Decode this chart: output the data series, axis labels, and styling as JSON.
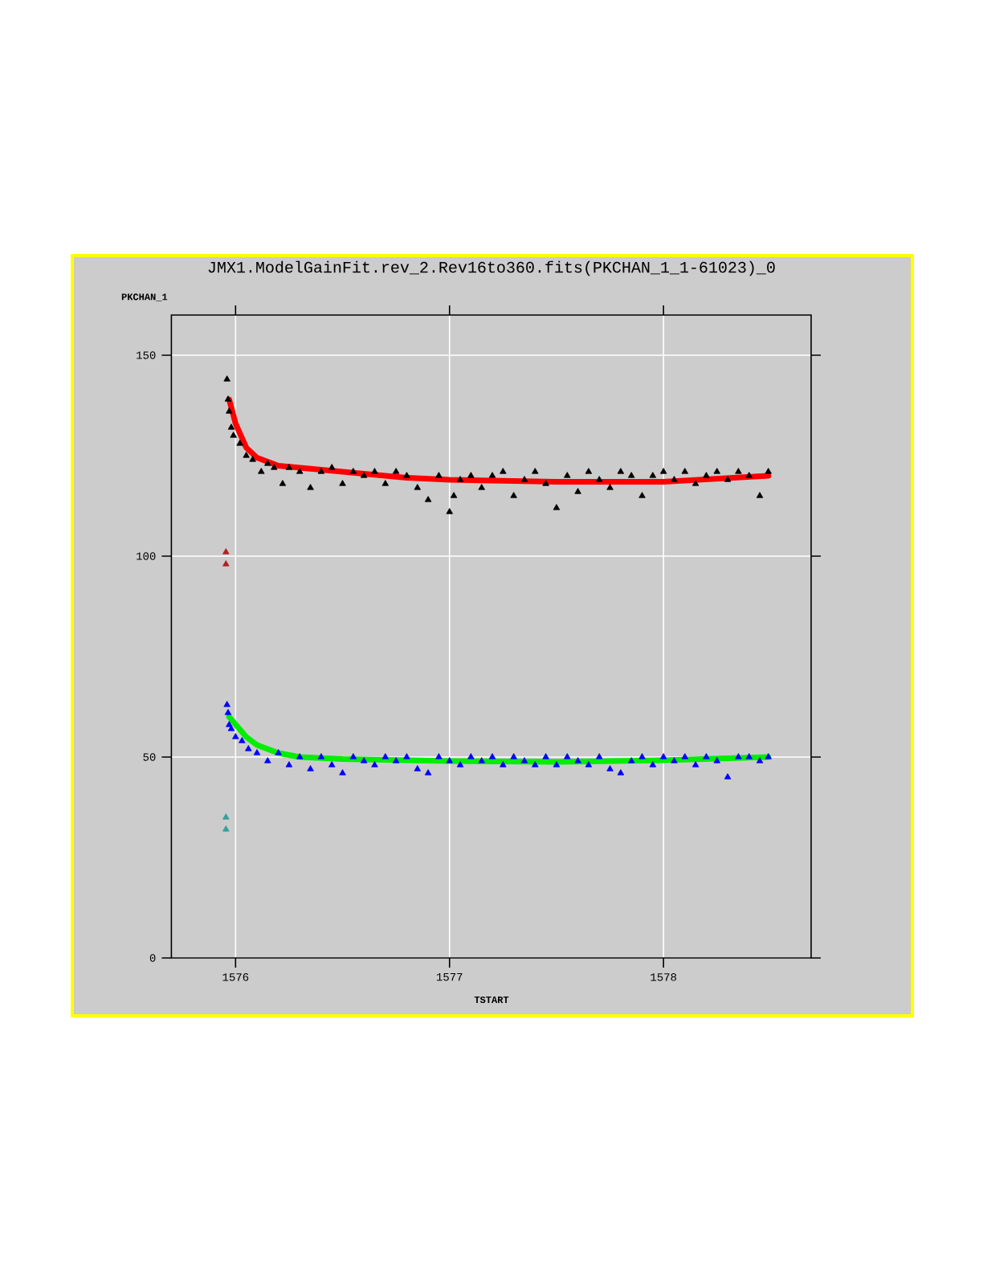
{
  "chart_data": {
    "type": "scatter",
    "title": "JMX1.ModelGainFit.rev_2.Rev16to360.fits(PKCHAN_1_1-61023)_0",
    "xlabel": "TSTART",
    "ylabel": "PKCHAN_1",
    "xlim": [
      1575.7,
      1578.69
    ],
    "xticks": [
      1576,
      1577,
      1578
    ],
    "ylim": [
      0,
      160
    ],
    "yticks": [
      0,
      50,
      100,
      150
    ],
    "grid": true,
    "series": [
      {
        "marker": "triangle",
        "color": "#000000",
        "x": [
          1575.96,
          1575.965,
          1575.97,
          1575.98,
          1575.99,
          1576.02,
          1576.05,
          1576.08,
          1576.12,
          1576.15,
          1576.18,
          1576.22,
          1576.25,
          1576.3,
          1576.35,
          1576.4,
          1576.45,
          1576.5,
          1576.55,
          1576.6,
          1576.65,
          1576.7,
          1576.75,
          1576.8,
          1576.85,
          1576.9,
          1576.95,
          1577.0,
          1577.02,
          1577.05,
          1577.1,
          1577.15,
          1577.2,
          1577.25,
          1577.3,
          1577.35,
          1577.4,
          1577.45,
          1577.5,
          1577.55,
          1577.6,
          1577.65,
          1577.7,
          1577.75,
          1577.8,
          1577.85,
          1577.9,
          1577.95,
          1578.0,
          1578.05,
          1578.1,
          1578.15,
          1578.2,
          1578.25,
          1578.3,
          1578.35,
          1578.4,
          1578.45,
          1578.49
        ],
        "values": [
          144,
          139,
          136,
          132,
          130,
          128,
          125,
          124,
          121,
          123,
          122,
          118,
          122,
          121,
          117,
          121,
          122,
          118,
          121,
          120,
          121,
          118,
          121,
          120,
          117,
          114,
          120,
          111,
          115,
          119,
          120,
          117,
          120,
          121,
          115,
          119,
          121,
          118,
          112,
          120,
          116,
          121,
          119,
          117,
          121,
          120,
          115,
          120,
          121,
          119,
          121,
          118,
          120,
          121,
          119,
          121,
          120,
          115,
          121
        ]
      },
      {
        "marker": "triangle",
        "color": "#b02020",
        "x": [
          1575.955,
          1575.955
        ],
        "values": [
          101,
          98
        ]
      },
      {
        "type": "line",
        "marker": "none",
        "color": "#ff0000",
        "x": [
          1575.97,
          1576.0,
          1576.05,
          1576.1,
          1576.2,
          1576.4,
          1576.6,
          1576.8,
          1577.0,
          1577.5,
          1578.0,
          1578.49
        ],
        "values": [
          139,
          133,
          127,
          124.5,
          122.5,
          121.5,
          120.5,
          119.5,
          119,
          118.5,
          118.5,
          120
        ]
      },
      {
        "marker": "triangle",
        "color": "#0000ff",
        "x": [
          1575.96,
          1575.965,
          1575.97,
          1575.98,
          1576.0,
          1576.03,
          1576.06,
          1576.1,
          1576.15,
          1576.2,
          1576.25,
          1576.3,
          1576.35,
          1576.4,
          1576.45,
          1576.5,
          1576.55,
          1576.6,
          1576.65,
          1576.7,
          1576.75,
          1576.8,
          1576.85,
          1576.9,
          1576.95,
          1577.0,
          1577.05,
          1577.1,
          1577.15,
          1577.2,
          1577.25,
          1577.3,
          1577.35,
          1577.4,
          1577.45,
          1577.5,
          1577.55,
          1577.6,
          1577.65,
          1577.7,
          1577.75,
          1577.8,
          1577.85,
          1577.9,
          1577.95,
          1578.0,
          1578.05,
          1578.1,
          1578.15,
          1578.2,
          1578.25,
          1578.3,
          1578.35,
          1578.4,
          1578.45,
          1578.49
        ],
        "values": [
          63,
          61,
          58,
          57,
          55,
          54,
          52,
          51,
          49,
          51,
          48,
          50,
          47,
          50,
          48,
          46,
          50,
          49,
          48,
          50,
          49,
          50,
          47,
          46,
          50,
          49,
          48,
          50,
          49,
          50,
          48,
          50,
          49,
          48,
          50,
          48,
          50,
          49,
          48,
          50,
          47,
          46,
          49,
          50,
          48,
          50,
          49,
          50,
          48,
          50,
          49,
          45,
          50,
          50,
          49,
          50
        ]
      },
      {
        "marker": "triangle",
        "color": "#30a0a0",
        "x": [
          1575.955,
          1575.955
        ],
        "values": [
          35,
          32
        ]
      },
      {
        "type": "line",
        "marker": "none",
        "color": "#00ee00",
        "x": [
          1575.97,
          1576.05,
          1576.1,
          1576.2,
          1576.3,
          1576.5,
          1577.0,
          1577.5,
          1578.0,
          1578.49
        ],
        "values": [
          60,
          55,
          53,
          51,
          50,
          49.5,
          49,
          48.8,
          49.2,
          50
        ]
      }
    ]
  }
}
